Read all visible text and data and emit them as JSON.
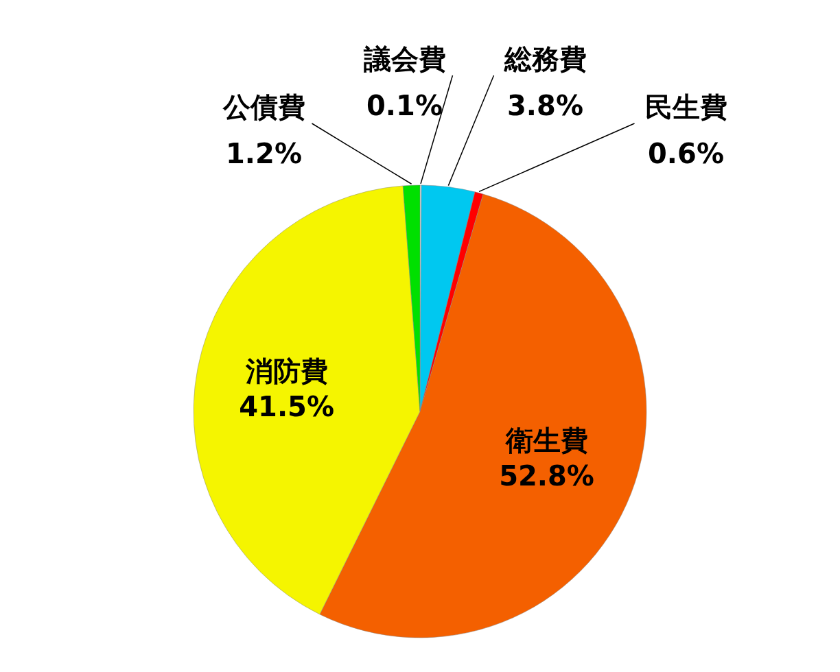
{
  "chart_data": {
    "type": "pie",
    "categories": [
      "議会費",
      "総務費",
      "民生費",
      "衛生費",
      "消防費",
      "公債費"
    ],
    "values": [
      0.1,
      3.8,
      0.6,
      52.8,
      41.5,
      1.2
    ],
    "value_labels": [
      "0.1%",
      "3.8%",
      "0.6%",
      "52.8%",
      "41.5%",
      "1.2%"
    ],
    "colors": [
      "#f0f0f0",
      "#00c8f0",
      "#ff0000",
      "#f46000",
      "#f5f500",
      "#00e000"
    ]
  }
}
